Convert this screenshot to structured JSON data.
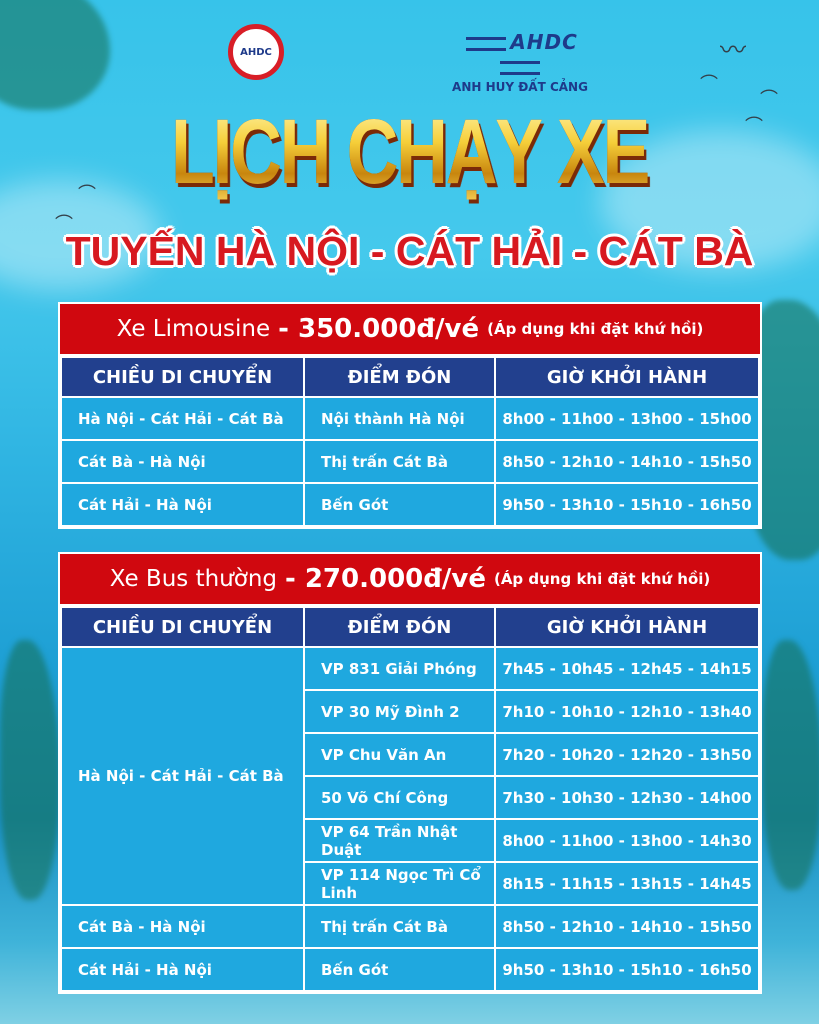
{
  "logos": {
    "left_text": "AHDC",
    "right_mark": "AHDC",
    "right_name": "ANH HUY ĐẤT CẢNG"
  },
  "title": "LỊCH CHẠY XE",
  "subtitle": "TUYẾN HÀ NỘI - CÁT HẢI - CÁT BÀ",
  "headers": [
    "CHIỀU DI CHUYỂN",
    "ĐIỂM ĐÓN",
    "GIỜ KHỞI HÀNH"
  ],
  "colors": {
    "price_band": "#d0080f",
    "header": "#22408e",
    "cell": "#1fa8df",
    "title_gold": "#f4c331",
    "subtitle_red": "#d71920"
  },
  "limousine": {
    "vehicle": "Xe Limousine",
    "price": "- 350.000đ/vé",
    "note": "(Áp dụng khi đặt khứ hồi)",
    "rows": [
      {
        "route": "Hà Nội - Cát Hải - Cát Bà",
        "pickup": "Nội thành Hà Nội",
        "times": "8h00 - 11h00 - 13h00 - 15h00"
      },
      {
        "route": "Cát Bà - Hà Nội",
        "pickup": "Thị trấn Cát Bà",
        "times": "8h50 - 12h10 - 14h10 - 15h50"
      },
      {
        "route": "Cát Hải - Hà Nội",
        "pickup": "Bến Gót",
        "times": "9h50 - 13h10 - 15h10 - 16h50"
      }
    ]
  },
  "bus": {
    "vehicle": "Xe Bus thường",
    "price": "- 270.000đ/vé",
    "note": "(Áp dụng khi đặt khứ hồi)",
    "group_route": "Hà Nội - Cát Hải - Cát Bà",
    "group_rows": [
      {
        "pickup": "VP 831 Giải Phóng",
        "times": "7h45 - 10h45 - 12h45 - 14h15"
      },
      {
        "pickup": "VP 30 Mỹ Đình 2",
        "times": "7h10 - 10h10 - 12h10 - 13h40"
      },
      {
        "pickup": "VP Chu Văn An",
        "times": "7h20 - 10h20 - 12h20 - 13h50"
      },
      {
        "pickup": "50 Võ Chí Công",
        "times": "7h30 - 10h30 - 12h30 - 14h00"
      },
      {
        "pickup": "VP 64 Trần Nhật Duật",
        "times": "8h00 - 11h00 - 13h00 - 14h30"
      },
      {
        "pickup": "VP 114 Ngọc Trì Cổ Linh",
        "times": "8h15 - 11h15 - 13h15 - 14h45"
      }
    ],
    "rows": [
      {
        "route": "Cát Bà - Hà Nội",
        "pickup": "Thị trấn Cát Bà",
        "times": "8h50 - 12h10 - 14h10 - 15h50"
      },
      {
        "route": "Cát Hải - Hà Nội",
        "pickup": "Bến Gót",
        "times": "9h50 - 13h10 - 15h10 - 16h50"
      }
    ]
  }
}
